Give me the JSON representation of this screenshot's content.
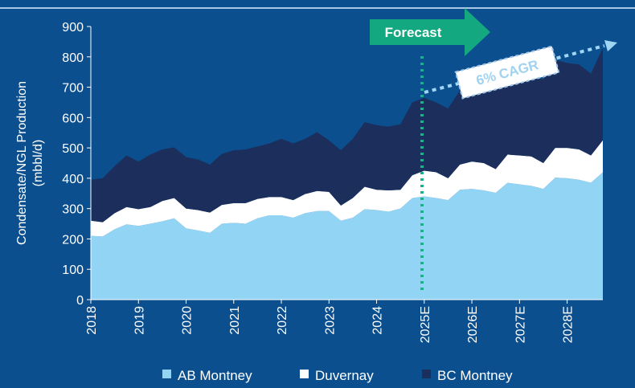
{
  "chart_data": {
    "type": "area",
    "stacked": true,
    "ylabel": [
      "Condensate/NGL Production",
      "(mbbl/d)"
    ],
    "annotations": [
      "Forecast",
      "6% CAGR"
    ],
    "x": [
      2018,
      2018.25,
      2018.5,
      2018.75,
      2019,
      2019.25,
      2019.5,
      2019.75,
      2020,
      2020.25,
      2020.5,
      2020.75,
      2021,
      2021.25,
      2021.5,
      2021.75,
      2022,
      2022.25,
      2022.5,
      2022.75,
      2023,
      2023.25,
      2023.5,
      2023.75,
      2024,
      2024.25,
      2024.5,
      2024.75,
      2025,
      2025.25,
      2025.5,
      2025.75,
      2026,
      2026.25,
      2026.5,
      2026.75,
      2027,
      2027.25,
      2027.5,
      2027.75,
      2028,
      2028.25,
      2028.5,
      2028.75
    ],
    "series": [
      {
        "name": "AB Montney",
        "color": "#92d4f4",
        "values": [
          210,
          208,
          232,
          248,
          243,
          250,
          258,
          268,
          235,
          228,
          220,
          250,
          253,
          250,
          268,
          278,
          278,
          270,
          285,
          292,
          292,
          260,
          270,
          298,
          295,
          290,
          300,
          335,
          340,
          335,
          328,
          362,
          365,
          360,
          352,
          385,
          380,
          375,
          365,
          402,
          400,
          395,
          385,
          420
        ]
      },
      {
        "name": "Duvernay",
        "color": "#ffffff",
        "values": [
          50,
          47,
          53,
          57,
          55,
          55,
          67,
          67,
          65,
          67,
          67,
          62,
          65,
          68,
          64,
          60,
          60,
          58,
          63,
          66,
          63,
          50,
          65,
          74,
          67,
          70,
          62,
          75,
          85,
          85,
          72,
          83,
          90,
          90,
          78,
          93,
          95,
          97,
          85,
          98,
          100,
          100,
          90,
          105
        ]
      },
      {
        "name": "BC Montney",
        "color": "#1c2f5c",
        "values": [
          135,
          145,
          155,
          170,
          157,
          173,
          170,
          167,
          170,
          167,
          158,
          168,
          174,
          177,
          173,
          177,
          192,
          187,
          182,
          194,
          170,
          182,
          195,
          213,
          213,
          210,
          216,
          240,
          240,
          230,
          230,
          245,
          260,
          250,
          260,
          262,
          270,
          268,
          275,
          290,
          280,
          280,
          270,
          305
        ]
      }
    ],
    "xlim": [
      2018,
      2028.75
    ],
    "xticks": [
      2018,
      2019,
      2020,
      2021,
      2022,
      2023,
      2024,
      {
        "value": 2025,
        "label": "2025E"
      },
      {
        "value": 2026,
        "label": "2026E"
      },
      {
        "value": 2027,
        "label": "2027E"
      },
      {
        "value": 2028,
        "label": "2028E"
      }
    ],
    "ylim": [
      0,
      900
    ],
    "yticks": [
      0,
      100,
      200,
      300,
      400,
      500,
      600,
      700,
      800,
      900
    ],
    "legend": "bottom"
  }
}
